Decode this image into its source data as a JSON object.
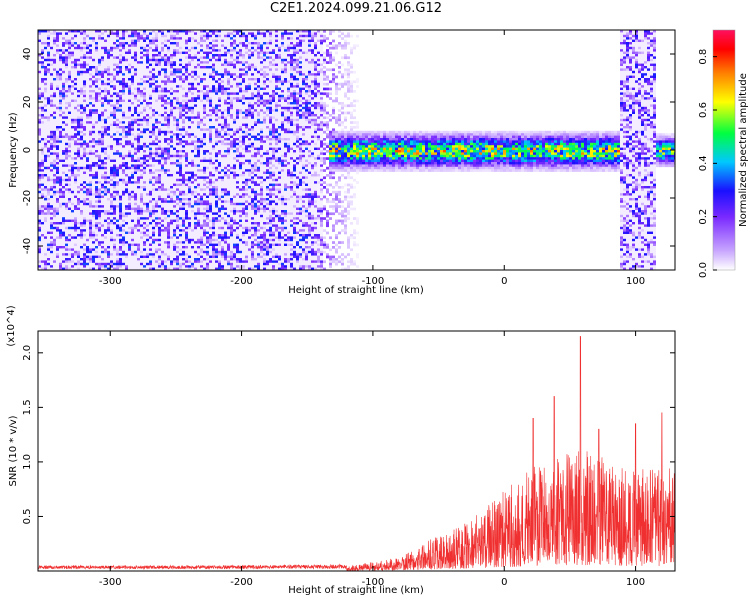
{
  "title": "C2E1.2024.099.21.06.G12",
  "chart_data": [
    {
      "type": "heatmap",
      "title": "C2E1.2024.099.21.06.G12",
      "xlabel": "Height of straight line (km)",
      "ylabel": "Frequency (Hz)",
      "xlim": [
        -355,
        130
      ],
      "ylim": [
        -50,
        50
      ],
      "x_ticks": [
        -300,
        -200,
        -100,
        0,
        100
      ],
      "y_ticks": [
        -40,
        -20,
        0,
        20,
        40
      ],
      "colorbar": {
        "label": "Normalized spectral amplitude",
        "range": [
          0,
          0.9
        ],
        "ticks": [
          "0.0",
          "0.2",
          "0.4",
          "0.6",
          "0.8"
        ],
        "colormap": [
          "#ffffff",
          "#c8a6ff",
          "#7a2aff",
          "#1a10ff",
          "#00c8ff",
          "#00ff40",
          "#ffff00",
          "#ff8000",
          "#ff0000",
          "#ff1060"
        ]
      },
      "regions": [
        {
          "name": "broadband",
          "x": [
            -355,
            -110
          ],
          "y": [
            -50,
            50
          ],
          "amplitude": 0.22
        },
        {
          "name": "signal-band",
          "x": [
            -135,
            88
          ],
          "y_center": 0,
          "y_halfwidth": 6,
          "amplitude": 0.5,
          "peak": 0.9
        },
        {
          "name": "broadband",
          "x": [
            88,
            115
          ],
          "y": [
            -50,
            50
          ],
          "amplitude": 0.2
        },
        {
          "name": "signal-band",
          "x": [
            115,
            130
          ],
          "y_center": 0,
          "y_halfwidth": 5,
          "amplitude": 0.45
        }
      ]
    },
    {
      "type": "line",
      "xlabel": "Height of straight line (km)",
      "ylabel": "SNR (10 * v/v)",
      "y_multiplier": "(x10^4)",
      "xlim": [
        -355,
        130
      ],
      "ylim": [
        0,
        22000
      ],
      "x_ticks": [
        -300,
        -200,
        -100,
        0,
        100
      ],
      "y_ticks": [
        "0.5",
        "1.0",
        "1.5",
        "2.0"
      ],
      "color": "#f03030",
      "envelope": [
        {
          "x": -355,
          "y": 300
        },
        {
          "x": -300,
          "y": 300
        },
        {
          "x": -200,
          "y": 320
        },
        {
          "x": -120,
          "y": 400
        },
        {
          "x": -80,
          "y": 1200
        },
        {
          "x": -60,
          "y": 2600
        },
        {
          "x": -40,
          "y": 3500
        },
        {
          "x": -20,
          "y": 5000
        },
        {
          "x": 0,
          "y": 7000
        },
        {
          "x": 20,
          "y": 9000
        },
        {
          "x": 40,
          "y": 10000
        },
        {
          "x": 60,
          "y": 11000
        },
        {
          "x": 80,
          "y": 9500
        },
        {
          "x": 100,
          "y": 9000
        },
        {
          "x": 120,
          "y": 9000
        },
        {
          "x": 130,
          "y": 9000
        }
      ],
      "peaks": [
        {
          "x": 58,
          "y": 21500
        },
        {
          "x": 38,
          "y": 16000
        },
        {
          "x": 22,
          "y": 14000
        },
        {
          "x": 72,
          "y": 13000
        },
        {
          "x": 120,
          "y": 14500
        },
        {
          "x": 100,
          "y": 13500
        }
      ]
    }
  ]
}
